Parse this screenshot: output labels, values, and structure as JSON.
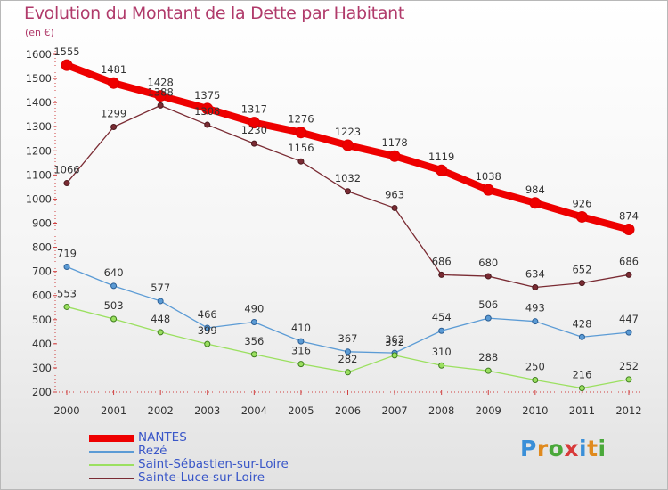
{
  "title": "Evolution du Montant de la Dette par Habitant",
  "unit": "(en €)",
  "logo": "Proxiti",
  "chart_data": {
    "type": "line",
    "x": [
      "2000",
      "2001",
      "2002",
      "2003",
      "2004",
      "2005",
      "2006",
      "2007",
      "2008",
      "2009",
      "2010",
      "2011",
      "2012"
    ],
    "ylim": [
      200,
      1600
    ],
    "yticks": [
      200,
      300,
      400,
      500,
      600,
      700,
      800,
      900,
      1000,
      1100,
      1200,
      1300,
      1400,
      1500,
      1600
    ],
    "grid": false,
    "legend_position": "bottom-left",
    "series": [
      {
        "name": "NANTES",
        "color": "#ee0000",
        "values": [
          1555,
          1481,
          1428,
          1375,
          1317,
          1276,
          1223,
          1178,
          1119,
          1038,
          984,
          926,
          874
        ]
      },
      {
        "name": "Rezé",
        "color": "#5b9bd5",
        "values": [
          719,
          640,
          577,
          466,
          490,
          410,
          367,
          362,
          454,
          506,
          493,
          428,
          447
        ]
      },
      {
        "name": "Saint-Sébastien-sur-Loire",
        "color": "#9be060",
        "values": [
          553,
          503,
          448,
          399,
          356,
          316,
          282,
          352,
          310,
          288,
          250,
          216,
          252
        ]
      },
      {
        "name": "Sainte-Luce-sur-Loire",
        "color": "#7a2b33",
        "values": [
          1066,
          1299,
          1388,
          1308,
          1230,
          1156,
          1032,
          963,
          686,
          680,
          634,
          652,
          686
        ]
      }
    ]
  }
}
